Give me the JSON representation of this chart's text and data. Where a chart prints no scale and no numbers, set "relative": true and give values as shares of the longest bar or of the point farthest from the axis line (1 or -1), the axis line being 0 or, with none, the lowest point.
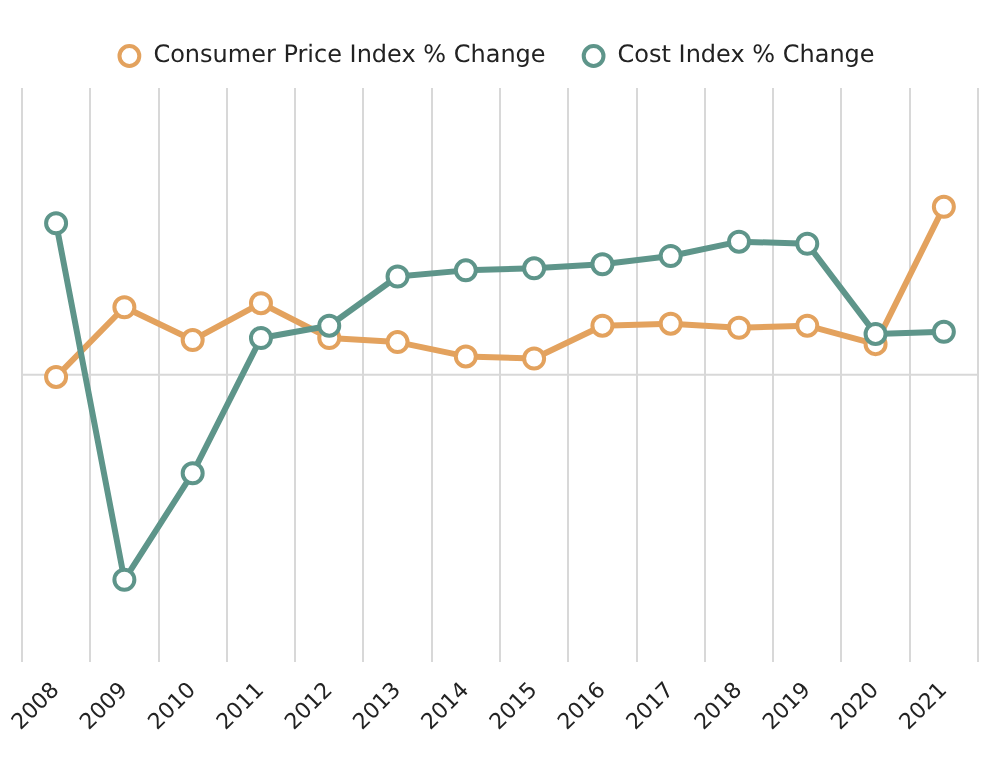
{
  "chart_data": {
    "type": "line",
    "relative": true,
    "categories": [
      "2008",
      "2009",
      "2010",
      "2011",
      "2012",
      "2013",
      "2014",
      "2015",
      "2016",
      "2017",
      "2018",
      "2019",
      "2020",
      "2021"
    ],
    "series": [
      {
        "name": "Consumer Price Index % Change",
        "color": "#e3a25e",
        "values": [
          -0.01,
          0.33,
          0.17,
          0.35,
          0.18,
          0.16,
          0.09,
          0.08,
          0.24,
          0.25,
          0.23,
          0.24,
          0.15,
          0.82
        ]
      },
      {
        "name": "Cost Index % Change",
        "color": "#5e958a",
        "values": [
          0.74,
          -1,
          -0.48,
          0.18,
          0.24,
          0.48,
          0.51,
          0.52,
          0.54,
          0.58,
          0.65,
          0.64,
          0.2,
          0.21
        ]
      }
    ],
    "grid": "x",
    "legend": "top",
    "marker": "circle",
    "line_style": "solid"
  }
}
